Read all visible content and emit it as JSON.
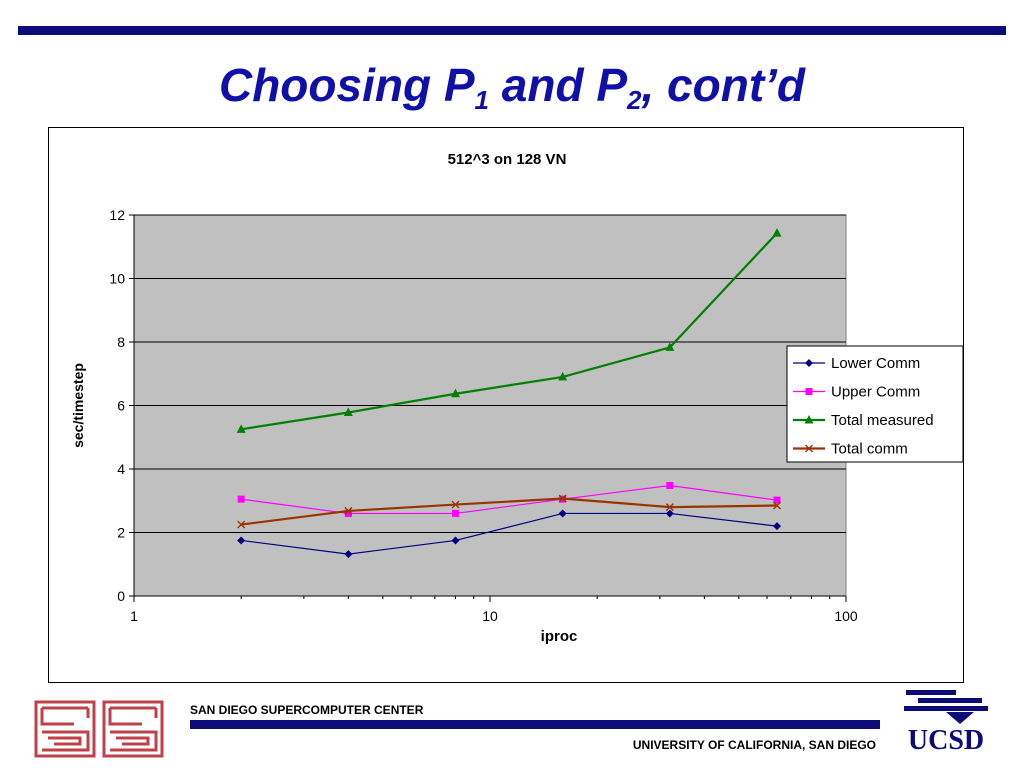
{
  "slide": {
    "title_main": "Choosing P",
    "title_sub1": "1",
    "title_mid": " and P",
    "title_sub2": "2",
    "title_end": ", cont’d"
  },
  "footer": {
    "center_name": "SAN DIEGO SUPERCOMPUTER CENTER",
    "university": "UNIVERSITY OF CALIFORNIA, SAN DIEGO",
    "logo_text": "UCSD"
  },
  "colors": {
    "brand_blue": "#0b0b7a",
    "title_blue": "#1010a8",
    "plot_bg": "#c0c0c0"
  },
  "chart_data": {
    "type": "line",
    "title": "512^3 on 128 VN",
    "xlabel": "iproc",
    "ylabel": "sec/timestep",
    "x_scale": "log",
    "xlim": [
      1,
      100
    ],
    "ylim": [
      0,
      12
    ],
    "x_ticks": [
      1,
      10,
      100
    ],
    "y_ticks": [
      0,
      2,
      4,
      6,
      8,
      10,
      12
    ],
    "grid": "horizontal",
    "legend_position": "right",
    "x": [
      2,
      4,
      8,
      16,
      32,
      64
    ],
    "series": [
      {
        "name": "Lower Comm",
        "values": [
          1.75,
          1.32,
          1.75,
          2.6,
          2.6,
          2.2
        ],
        "color": "#000080",
        "marker": "diamond"
      },
      {
        "name": "Upper Comm",
        "values": [
          3.05,
          2.6,
          2.6,
          3.05,
          3.48,
          3.02
        ],
        "color": "#ff00ff",
        "marker": "square"
      },
      {
        "name": "Total measured",
        "values": [
          5.25,
          5.78,
          6.37,
          6.9,
          7.83,
          11.43
        ],
        "color": "#008000",
        "marker": "triangle"
      },
      {
        "name": "Total comm",
        "values": [
          2.25,
          2.68,
          2.88,
          3.07,
          2.8,
          2.85
        ],
        "color": "#993300",
        "marker": "x"
      }
    ]
  }
}
